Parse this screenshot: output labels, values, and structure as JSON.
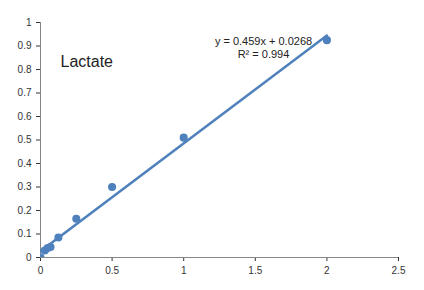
{
  "chart_data": {
    "type": "scatter",
    "annotations": [
      "Lactate",
      "y = 0.459x + 0.0268",
      "R² = 0.994"
    ],
    "series": [
      {
        "type": "scatter",
        "color": "#4f81bd",
        "marker": "circle",
        "x": [
          0,
          0.03,
          0.05,
          0.07,
          0.125,
          0.25,
          0.5,
          1,
          2
        ],
        "values": [
          0,
          0.03,
          0.04,
          0.045,
          0.085,
          0.165,
          0.3,
          0.51,
          0.925
        ]
      },
      {
        "type": "line",
        "color": "#4f81bd",
        "line_style": "solid",
        "x": [
          0,
          2
        ],
        "values": [
          0.0268,
          0.9448
        ]
      }
    ],
    "xlim": [
      0,
      2.5
    ],
    "xticks": [
      0,
      0.5,
      1,
      1.5,
      2,
      2.5
    ],
    "ylim": [
      0,
      1
    ],
    "yticks": [
      0,
      0.1,
      0.2,
      0.3,
      0.4,
      0.5,
      0.6,
      0.7,
      0.8,
      0.9,
      1
    ],
    "grid": false
  }
}
